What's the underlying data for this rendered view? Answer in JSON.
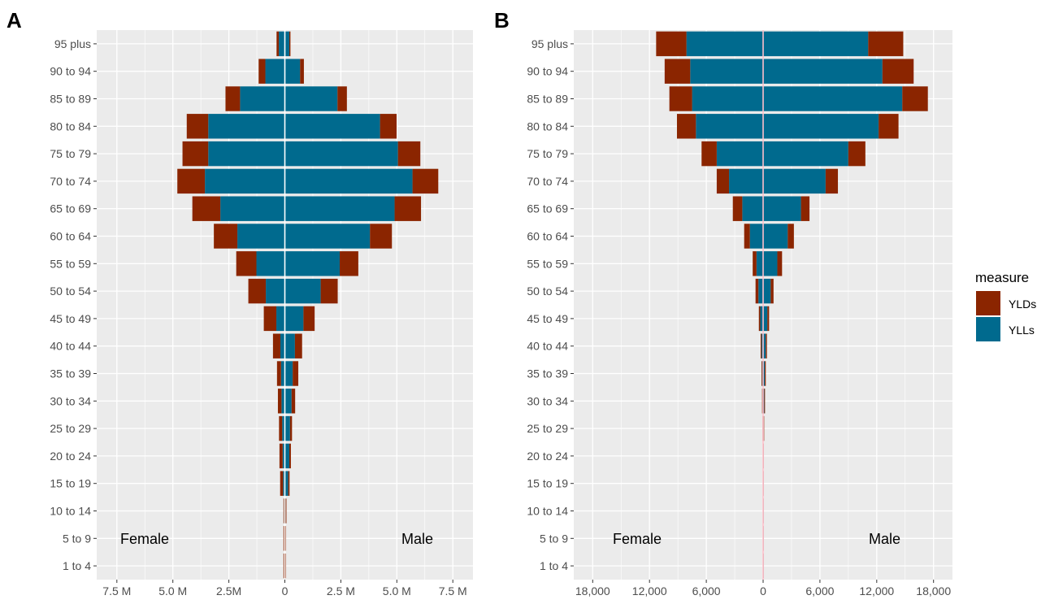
{
  "chart_data": [
    {
      "panel_letter": "A",
      "type": "bar",
      "orientation": "horizontal",
      "stacked": true,
      "diverging": true,
      "categories": [
        "1 to 4",
        "5 to 9",
        "10 to 14",
        "15 to 19",
        "20 to 24",
        "25 to 29",
        "30 to 34",
        "35 to 39",
        "40 to 44",
        "45 to 49",
        "50 to 54",
        "55 to 59",
        "60 to 64",
        "65 to 69",
        "70 to 74",
        "75 to 79",
        "80 to 84",
        "85 to 89",
        "90 to 94",
        "95 plus"
      ],
      "female_label": "Female",
      "male_label": "Male",
      "xlim": [
        -8400000,
        8400000
      ],
      "x_ticks": [
        {
          "value": -7500000,
          "label": "7.5 M"
        },
        {
          "value": -5000000,
          "label": "5.0 M"
        },
        {
          "value": -2500000,
          "label": "2.5M"
        },
        {
          "value": 0,
          "label": "0"
        },
        {
          "value": 2500000,
          "label": "2.5 M"
        },
        {
          "value": 5000000,
          "label": "5.0 M"
        },
        {
          "value": 7500000,
          "label": "7.5 M"
        }
      ],
      "series": [
        {
          "name": "YLLs",
          "female": [
            20000,
            20000,
            30000,
            80000,
            100000,
            120000,
            150000,
            170000,
            200000,
            380000,
            850000,
            1270000,
            2120000,
            2880000,
            3570000,
            3420000,
            3420000,
            2000000,
            870000,
            270000
          ],
          "male": [
            20000,
            20000,
            30000,
            150000,
            200000,
            230000,
            300000,
            350000,
            450000,
            830000,
            1600000,
            2450000,
            3800000,
            4900000,
            5700000,
            5050000,
            4250000,
            2350000,
            680000,
            200000
          ]
        },
        {
          "name": "YLDs",
          "female": [
            40000,
            40000,
            30000,
            130000,
            140000,
            140000,
            160000,
            180000,
            330000,
            560000,
            780000,
            900000,
            1050000,
            1250000,
            1230000,
            1150000,
            960000,
            650000,
            300000,
            100000
          ],
          "male": [
            30000,
            30000,
            40000,
            60000,
            70000,
            90000,
            160000,
            250000,
            320000,
            500000,
            760000,
            830000,
            980000,
            1180000,
            1150000,
            1000000,
            740000,
            420000,
            170000,
            50000
          ]
        }
      ]
    },
    {
      "panel_letter": "B",
      "type": "bar",
      "orientation": "horizontal",
      "stacked": true,
      "diverging": true,
      "categories": [
        "1 to 4",
        "5 to 9",
        "10 to 14",
        "15 to 19",
        "20 to 24",
        "25 to 29",
        "30 to 34",
        "35 to 39",
        "40 to 44",
        "45 to 49",
        "50 to 54",
        "55 to 59",
        "60 to 64",
        "65 to 69",
        "70 to 74",
        "75 to 79",
        "80 to 84",
        "85 to 89",
        "90 to 94",
        "95 plus"
      ],
      "female_label": "Female",
      "male_label": "Male",
      "xlim": [
        -20000,
        20000
      ],
      "x_ticks": [
        {
          "value": -18000,
          "label": "18,000"
        },
        {
          "value": -12000,
          "label": "12,000"
        },
        {
          "value": -6000,
          "label": "6,000"
        },
        {
          "value": 0,
          "label": "0"
        },
        {
          "value": 6000,
          "label": "6,000"
        },
        {
          "value": 12000,
          "label": "12,000"
        },
        {
          "value": 18000,
          "label": "18,000"
        }
      ],
      "series": [
        {
          "name": "YLLs",
          "female": [
            5,
            5,
            5,
            8,
            10,
            20,
            50,
            100,
            160,
            300,
            500,
            700,
            1400,
            2200,
            3600,
            4900,
            7100,
            7500,
            7700,
            8100
          ],
          "male": [
            5,
            5,
            5,
            8,
            10,
            60,
            120,
            180,
            280,
            450,
            800,
            1500,
            2600,
            4000,
            6600,
            9000,
            12200,
            14700,
            12600,
            11100
          ]
        },
        {
          "name": "YLDs",
          "female": [
            5,
            5,
            5,
            10,
            15,
            40,
            60,
            70,
            100,
            150,
            300,
            400,
            600,
            1000,
            1300,
            1600,
            2000,
            2400,
            2700,
            3200
          ],
          "male": [
            5,
            5,
            5,
            10,
            15,
            50,
            80,
            100,
            120,
            180,
            300,
            500,
            650,
            900,
            1300,
            1800,
            2100,
            2700,
            3300,
            3700
          ]
        }
      ]
    }
  ],
  "legend": {
    "title": "measure",
    "position": "right",
    "items": [
      {
        "label": "YLDs",
        "color": "#8b2500"
      },
      {
        "label": "YLLs",
        "color": "#006a8e"
      }
    ]
  },
  "colors": {
    "panel_background": "#ebebeb",
    "grid_major": "#ffffff",
    "zero_line_a": "#ffffff",
    "zero_line_b": "#ffc0cb"
  }
}
